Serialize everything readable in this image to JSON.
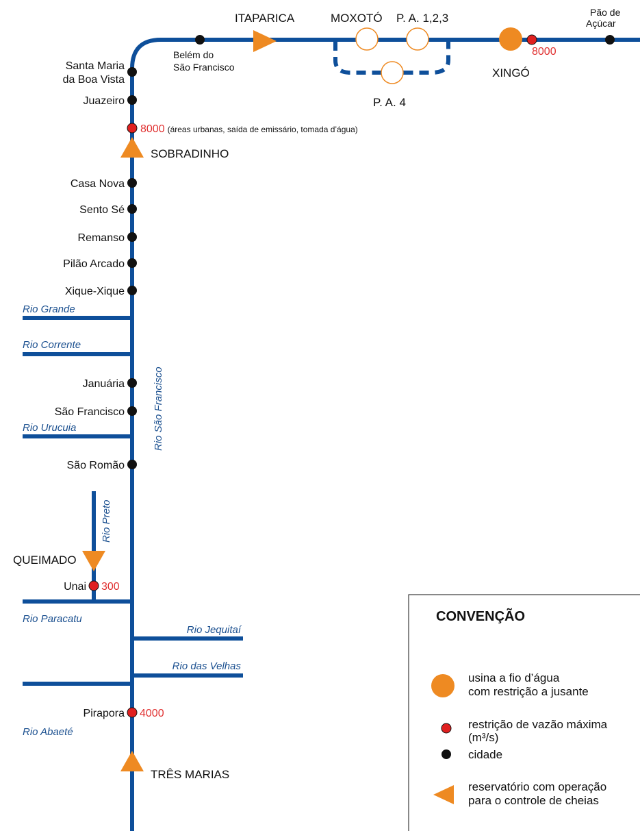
{
  "colors": {
    "river": "#0e4f9a",
    "plant": "#ee8a22",
    "restriction": "#e02020",
    "city": "#111111",
    "river_label": "#1a4f8f"
  },
  "main_river": {
    "name": "Rio São Francisco"
  },
  "cities": {
    "santa_maria_1": "Santa Maria",
    "santa_maria_2": "da Boa Vista",
    "juazeiro": "Juazeiro",
    "casa_nova": "Casa Nova",
    "sento_se": "Sento Sé",
    "remanso": "Remanso",
    "pilao_arcado": "Pilão Arcado",
    "xique_xique": "Xique-Xique",
    "januaria": "Januária",
    "sao_francisco": "São Francisco",
    "sao_romao": "São Romão",
    "unai": "Unai",
    "pirapora": "Pirapora",
    "belem_1": "Belém do",
    "belem_2": "São Francisco",
    "pao_1": "Pão de",
    "pao_2": "Açúcar"
  },
  "plants": {
    "itaparica": "ITAPARICA",
    "moxoto": "MOXOTÓ",
    "pa123": "P. A. 1,2,3",
    "pa4": "P. A. 4",
    "xingo": "XINGÓ",
    "sobradinho": "SOBRADINHO",
    "queimado": "QUEIMADO",
    "tres_marias": "TRÊS MARIAS"
  },
  "restrictions": {
    "juazeiro_value": "8000",
    "juazeiro_note": "(áreas urbanas, saída de emissário, tomada d’água)",
    "xingo_value": "8000",
    "unai_value": "300",
    "pirapora_value": "4000"
  },
  "tributaries": {
    "grande": "Rio Grande",
    "corrente": "Rio Corrente",
    "urucuia": "Rio Urucuia",
    "preto": "Rio Preto",
    "paracatu": "Rio Paracatu",
    "jequitai": "Rio Jequitaí",
    "velhas": "Rio das Velhas",
    "abaete": "Rio Abaeté"
  },
  "legend": {
    "title": "CONVENÇÃO",
    "usina_1": "usina a fio d’água",
    "usina_2": "com restrição a jusante",
    "restricao_1": "restrição de vazão máxima",
    "restricao_2": "(m³/s)",
    "cidade": "cidade",
    "reservatorio_1": "reservatório com operação",
    "reservatorio_2": "para o controle de cheias"
  }
}
